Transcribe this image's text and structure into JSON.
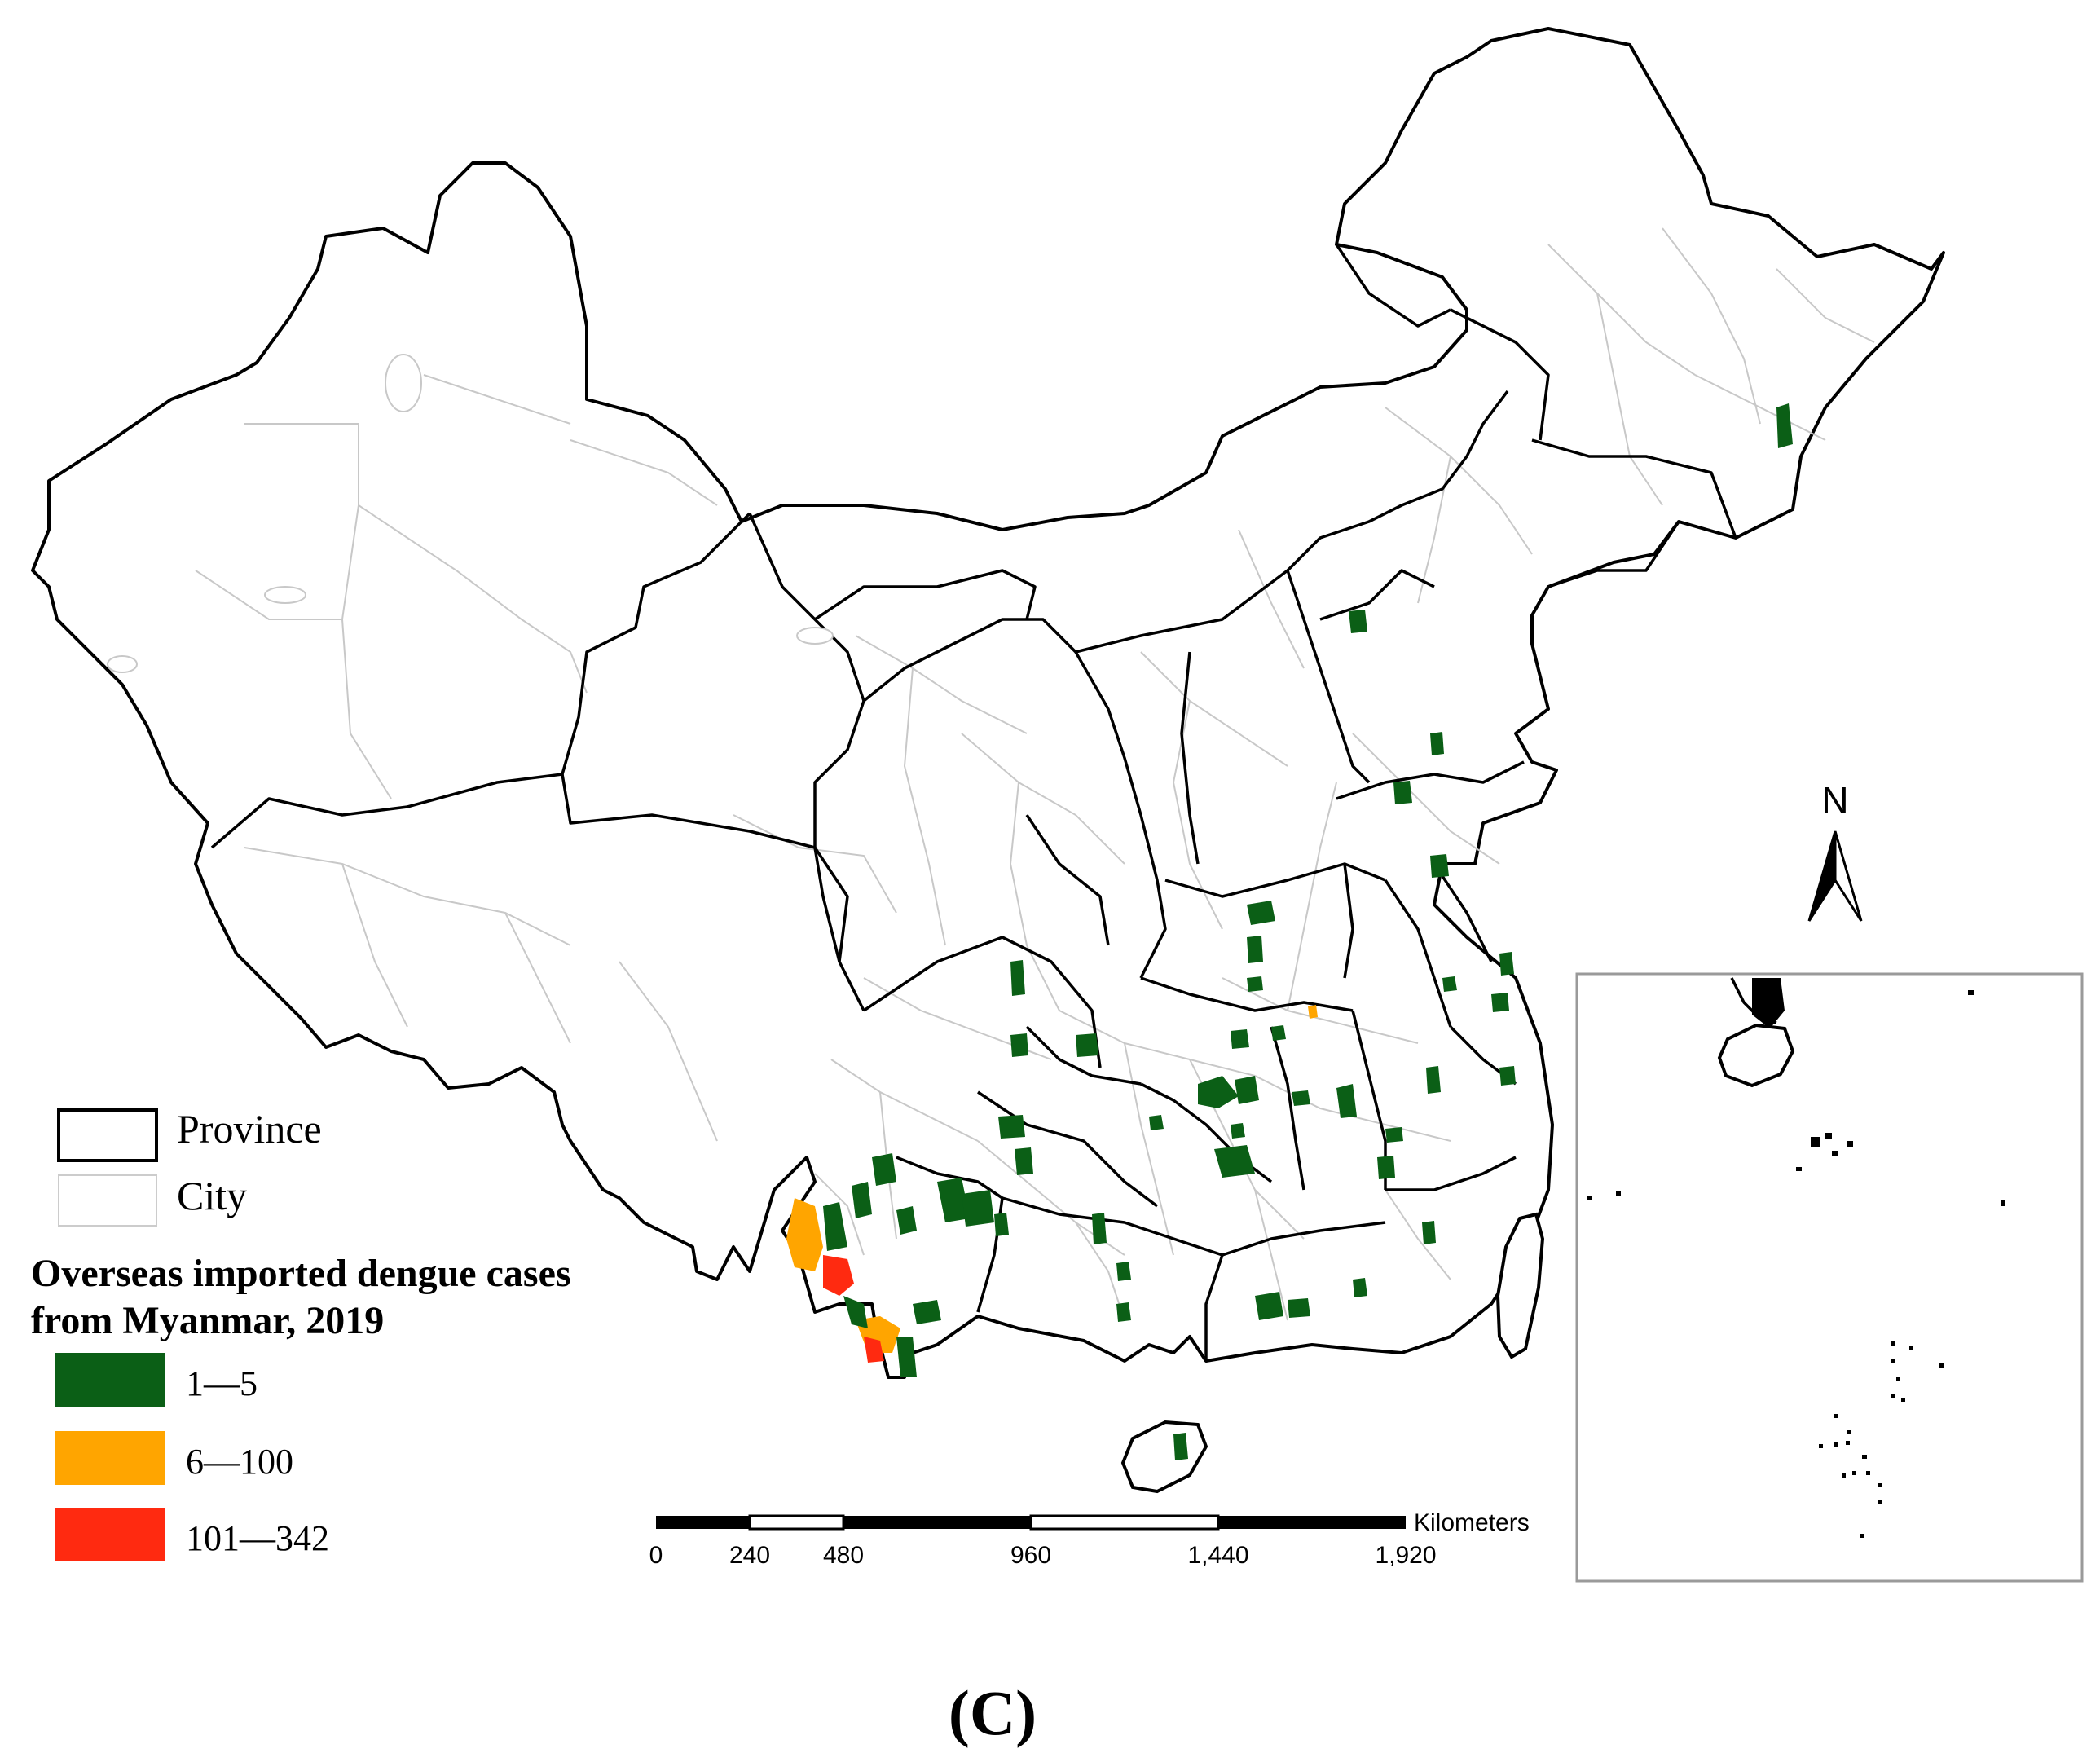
{
  "legend": {
    "boundaries": [
      {
        "label": "Province",
        "stroke": "#000000"
      },
      {
        "label": "City",
        "stroke": "#c8c8c8"
      }
    ],
    "title_line1": "Overseas imported dengue cases",
    "title_line2": "from Myanmar, 2019",
    "classes": [
      {
        "label": "1—5",
        "color": "#0b5f16"
      },
      {
        "label": "6—100",
        "color": "#ffa500"
      },
      {
        "label": "101—342",
        "color": "#ff2a10"
      }
    ]
  },
  "north_arrow": {
    "label": "N"
  },
  "scale_bar": {
    "unit": "Kilometers",
    "ticks": [
      "0",
      "240",
      "480",
      "960",
      "1,440",
      "1,920"
    ]
  },
  "panel_label": "(C)"
}
